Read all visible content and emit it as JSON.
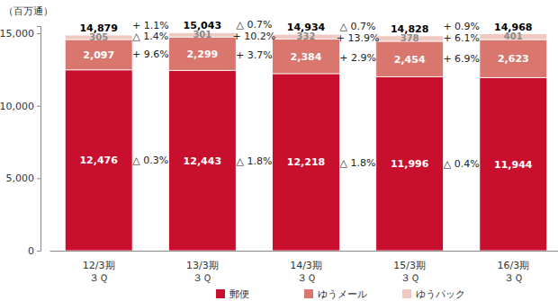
{
  "chart_data": {
    "type": "bar",
    "stacked": true,
    "data_labels": true,
    "legend": "bottom",
    "y_label": "（百万通）",
    "categories": [
      "12/3期\n３Ｑ",
      "13/3期\n３Ｑ",
      "14/3期\n３Ｑ",
      "15/3期\n３Ｑ",
      "16/3期\n３Ｑ"
    ],
    "series": [
      {
        "name": "郵便",
        "color": "#c8102e",
        "values": [
          12476,
          12443,
          12218,
          11996,
          11944
        ],
        "value_labels": [
          "12,476",
          "12,443",
          "12,218",
          "11,996",
          "11,944"
        ],
        "change_labels": [
          "△ 0.3%",
          "△ 1.8%",
          "△ 1.8%",
          "△ 0.4%"
        ]
      },
      {
        "name": "ゆうメール",
        "color": "#d9776f",
        "values": [
          2097,
          2299,
          2384,
          2454,
          2623
        ],
        "value_labels": [
          "2,097",
          "2,299",
          "2,384",
          "2,454",
          "2,623"
        ],
        "change_labels": [
          "+ 9.6%",
          "+ 3.7%",
          "+ 2.9%",
          "+ 6.9%"
        ]
      },
      {
        "name": "ゆうパック",
        "color": "#f0c9c2",
        "values": [
          305,
          301,
          332,
          378,
          401
        ],
        "value_labels": [
          "305",
          "301",
          "332",
          "378",
          "401"
        ],
        "change_labels": [
          "△ 1.4%",
          "+ 10.2%",
          "+ 13.9%",
          "+ 6.1%"
        ]
      }
    ],
    "totals": [
      14879,
      15043,
      14934,
      14828,
      14968
    ],
    "total_labels": [
      "14,879",
      "15,043",
      "14,934",
      "14,828",
      "14,968"
    ],
    "total_change_labels": [
      "+ 1.1%",
      "△ 0.7%",
      "△ 0.7%",
      "+ 0.9%"
    ],
    "ylim": [
      0,
      15500
    ],
    "yticks": [
      0,
      {
        "value": 5000,
        "label": "5,000"
      },
      {
        "value": 10000,
        "label": "10,000"
      },
      {
        "value": 15000,
        "label": "15,000"
      }
    ]
  }
}
